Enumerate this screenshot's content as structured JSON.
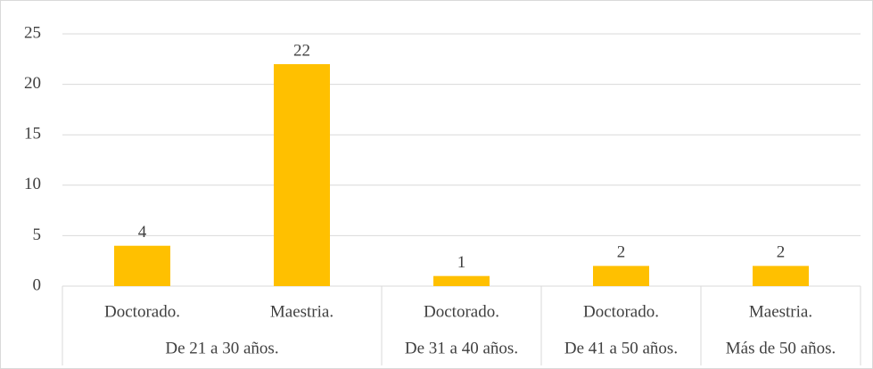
{
  "chart_data": {
    "type": "bar",
    "color": "#ffc000",
    "ylim": [
      0,
      25
    ],
    "yticks": [
      0,
      5,
      10,
      15,
      20,
      25
    ],
    "grid": true,
    "groups": [
      {
        "name": "De 21 a 30 años.",
        "categories": [
          "Doctorado.",
          "Maestria."
        ],
        "values": [
          4,
          22
        ]
      },
      {
        "name": "De 31 a 40 años.",
        "categories": [
          "Doctorado."
        ],
        "values": [
          1
        ]
      },
      {
        "name": "De 41 a 50 años.",
        "categories": [
          "Doctorado."
        ],
        "values": [
          2
        ]
      },
      {
        "name": "Más de 50 años.",
        "categories": [
          "Maestria."
        ],
        "values": [
          2
        ]
      }
    ]
  }
}
